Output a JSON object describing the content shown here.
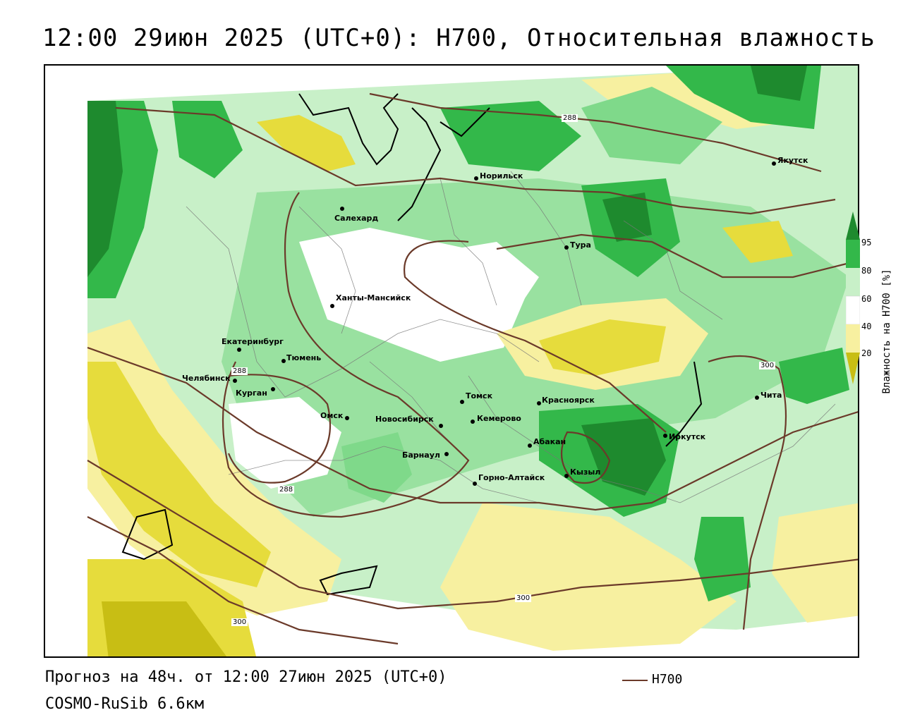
{
  "header": {
    "title": "12:00 29июн 2025 (UTC+0): H700, Относительная влажность"
  },
  "footer": {
    "forecast": "Прогноз на 48ч. от 12:00 27июн 2025 (UTC+0)",
    "model": "COSMO-RuSib 6.6км"
  },
  "legend": {
    "contour_label": "H700",
    "contour_color": "#6b3a2a"
  },
  "colorbar": {
    "title": "Влажность на H700 [%]",
    "ticks": [
      "95",
      "80",
      "60",
      "40",
      "20"
    ],
    "colors": {
      "dark_green": "#1e8a2e",
      "green": "#33b84a",
      "light_green": "#7fd98a",
      "pale_green": "#c8f0c8",
      "white": "#ffffff",
      "pale_yellow": "#f7f0a0",
      "yellow": "#e6dc3c",
      "dark_yellow": "#c8be14"
    }
  },
  "cities": [
    {
      "name": "Якутск"
    },
    {
      "name": "Норильск"
    },
    {
      "name": "Салехард"
    },
    {
      "name": "Тура"
    },
    {
      "name": "Ханты-Мансийск"
    },
    {
      "name": "Екатеринбург"
    },
    {
      "name": "Тюмень"
    },
    {
      "name": "Челябинск"
    },
    {
      "name": "Курган"
    },
    {
      "name": "Омск"
    },
    {
      "name": "Новосибирск"
    },
    {
      "name": "Томск"
    },
    {
      "name": "Кемерово"
    },
    {
      "name": "Барнаул"
    },
    {
      "name": "Красноярск"
    },
    {
      "name": "Абакан"
    },
    {
      "name": "Кызыл"
    },
    {
      "name": "Горно-Алтайск"
    },
    {
      "name": "Иркутск"
    },
    {
      "name": "Чита"
    }
  ],
  "contour_labels": [
    "288",
    "288",
    "288",
    "300",
    "300",
    "300"
  ]
}
